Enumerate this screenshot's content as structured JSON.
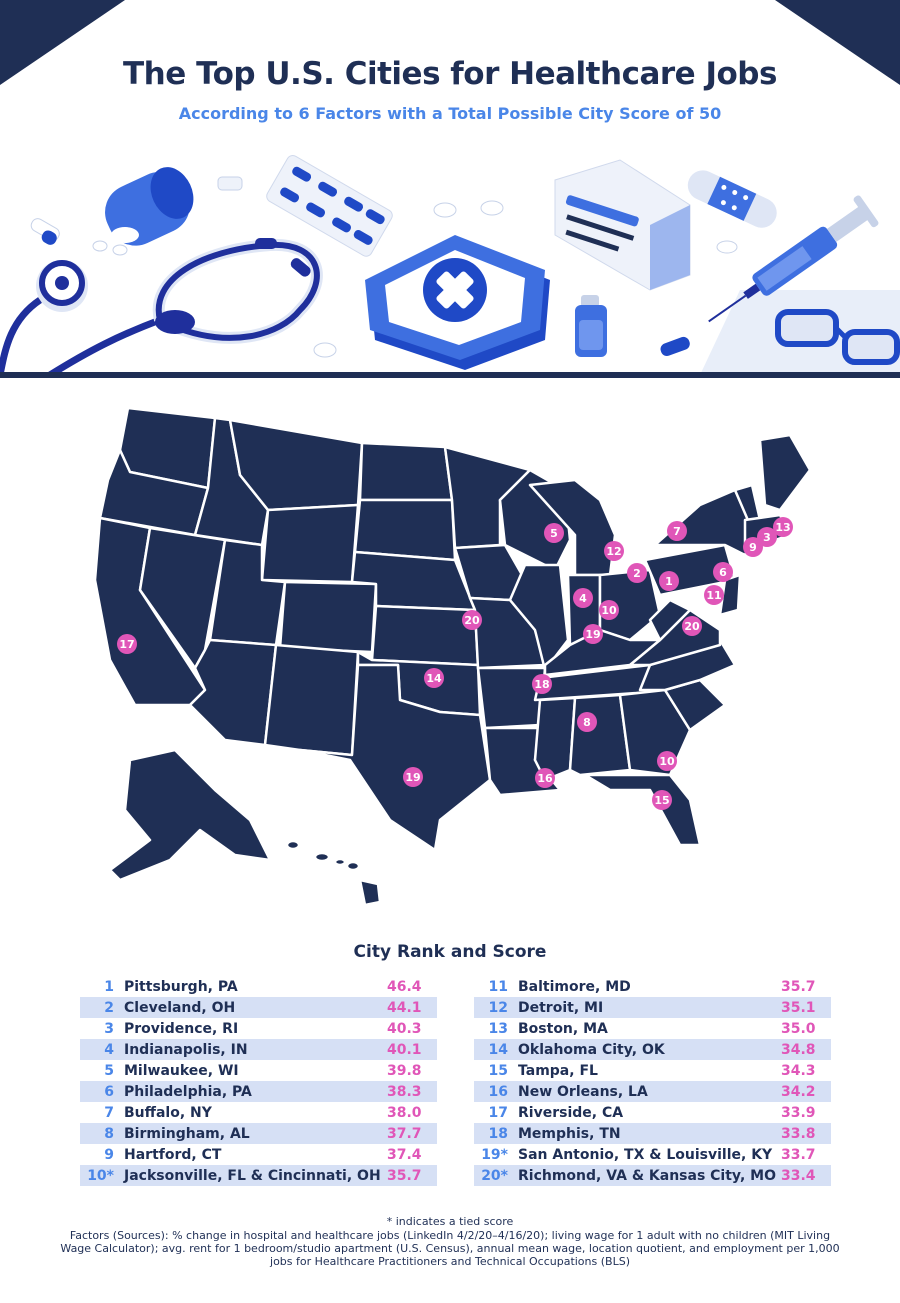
{
  "header": {
    "title": "The Top U.S. Cities for Healthcare Jobs",
    "subtitle": "According to 6 Factors with a Total Possible City Score of 50"
  },
  "map_markers": [
    "1",
    "2",
    "3",
    "4",
    "5",
    "6",
    "7",
    "8",
    "9",
    "10",
    "10",
    "11",
    "12",
    "13",
    "14",
    "15",
    "16",
    "17",
    "18",
    "19",
    "19",
    "20",
    "20"
  ],
  "table": {
    "title": "City Rank and Score",
    "left": [
      {
        "rank": "1",
        "city": "Pittsburgh, PA",
        "score": "46.4"
      },
      {
        "rank": "2",
        "city": "Cleveland, OH",
        "score": "44.1"
      },
      {
        "rank": "3",
        "city": "Providence, RI",
        "score": "40.3"
      },
      {
        "rank": "4",
        "city": "Indianapolis, IN",
        "score": "40.1"
      },
      {
        "rank": "5",
        "city": "Milwaukee, WI",
        "score": "39.8"
      },
      {
        "rank": "6",
        "city": "Philadelphia, PA",
        "score": "38.3"
      },
      {
        "rank": "7",
        "city": "Buffalo, NY",
        "score": "38.0"
      },
      {
        "rank": "8",
        "city": "Birmingham, AL",
        "score": "37.7"
      },
      {
        "rank": "9",
        "city": "Hartford, CT",
        "score": "37.4"
      },
      {
        "rank": "10*",
        "city": "Jacksonville, FL & Cincinnati, OH",
        "score": "35.7"
      }
    ],
    "right": [
      {
        "rank": "11",
        "city": "Baltimore, MD",
        "score": "35.7"
      },
      {
        "rank": "12",
        "city": "Detroit, MI",
        "score": "35.1"
      },
      {
        "rank": "13",
        "city": "Boston, MA",
        "score": "35.0"
      },
      {
        "rank": "14",
        "city": "Oklahoma City, OK",
        "score": "34.8"
      },
      {
        "rank": "15",
        "city": "Tampa, FL",
        "score": "34.3"
      },
      {
        "rank": "16",
        "city": "New Orleans, LA",
        "score": "34.2"
      },
      {
        "rank": "17",
        "city": "Riverside, CA",
        "score": "33.9"
      },
      {
        "rank": "18",
        "city": "Memphis, TN",
        "score": "33.8"
      },
      {
        "rank": "19*",
        "city": "San Antonio, TX & Louisville, KY",
        "score": "33.7"
      },
      {
        "rank": "20*",
        "city": "Richmond, VA & Kansas City, MO",
        "score": "33.4"
      }
    ]
  },
  "footer": {
    "tie_note": "* indicates a tied score",
    "factors": "Factors (Sources): % change in hospital and healthcare jobs (LinkedIn 4/2/20–4/16/20); living wage for 1 adult with no children (MIT Living Wage Calculator); avg. rent for 1 bedroom/studio apartment (U.S. Census), annual mean wage, location quotient, and employment per 1,000 jobs for Healthcare Practitioners and Technical Occupations (BLS)"
  },
  "colors": {
    "navy": "#1f2f55",
    "accent_blue": "#4a86e8",
    "score_pink": "#e056b8",
    "row_shade": "#d6e0f5"
  },
  "icons": [
    "stethoscope-icon",
    "pill-bottle-icon",
    "pill-blister-icon",
    "medical-shield-icon",
    "medicine-box-icon",
    "bandage-icon",
    "syringe-icon",
    "vial-icon",
    "glasses-icon",
    "capsule-icon"
  ]
}
